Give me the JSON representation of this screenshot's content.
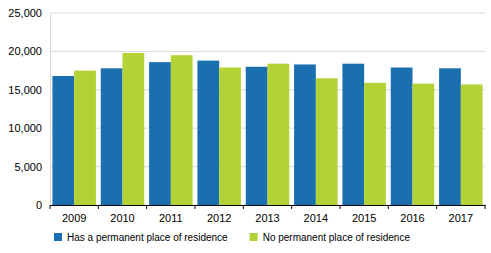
{
  "chart_data": {
    "type": "bar",
    "categories": [
      "2009",
      "2010",
      "2011",
      "2012",
      "2013",
      "2014",
      "2015",
      "2016",
      "2017"
    ],
    "series": [
      {
        "name": "Has a permanent place of residence",
        "color": "#1a6faf",
        "values": [
          16800,
          17800,
          18600,
          18800,
          18000,
          18300,
          18400,
          17900,
          17800
        ]
      },
      {
        "name": "No permanent place of residence",
        "color": "#b3d235",
        "values": [
          17500,
          19800,
          19500,
          17900,
          18400,
          16500,
          15900,
          15800,
          15700
        ]
      }
    ],
    "ylim": [
      0,
      25000
    ],
    "yticks": [
      0,
      {
        "value": 5000,
        "label": "5,000"
      },
      {
        "value": 10000,
        "label": "10,000"
      },
      {
        "value": 15000,
        "label": "15,000"
      },
      {
        "value": 20000,
        "label": "20,000"
      },
      {
        "value": 25000,
        "label": "25,000"
      }
    ],
    "grid": true,
    "legend": "bottom"
  }
}
